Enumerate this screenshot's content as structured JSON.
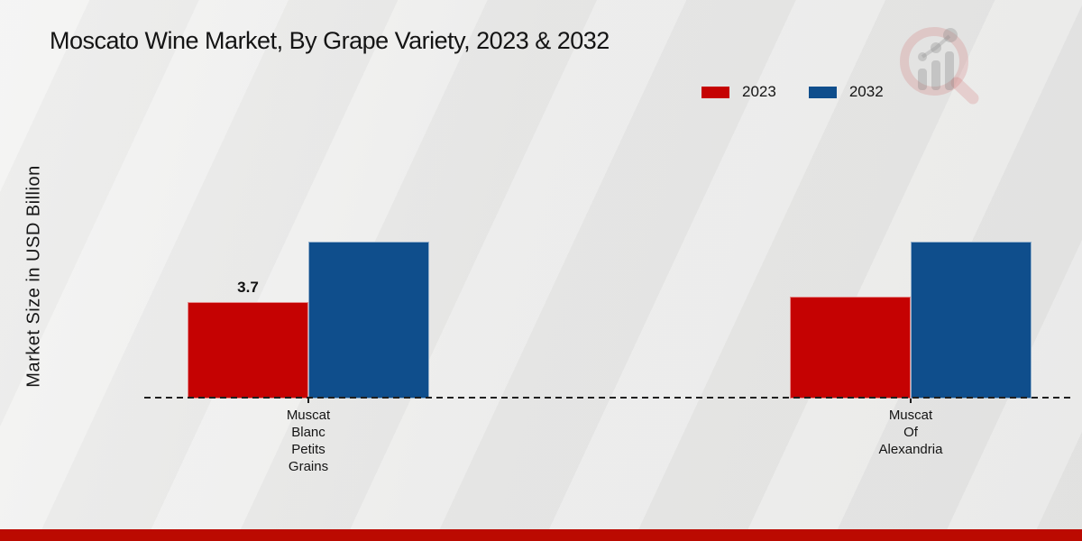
{
  "title": "Moscato Wine Market, By Grape Variety, 2023 & 2032",
  "y_axis_label": "Market Size in USD Billion",
  "legend": [
    {
      "label": "2023",
      "color": "#c50202"
    },
    {
      "label": "2032",
      "color": "#0f4e8c"
    }
  ],
  "chart_data": {
    "type": "bar",
    "title": "Moscato Wine Market, By Grape Variety, 2023 & 2032",
    "categories": [
      "Muscat Blanc Petits Grains",
      "Muscat Of Alexandria"
    ],
    "series": [
      {
        "name": "2023",
        "color": "#c50202",
        "values": [
          3.7,
          3.9
        ],
        "data_labels": [
          "3.7",
          ""
        ]
      },
      {
        "name": "2032",
        "color": "#0f4e8c",
        "values": [
          6.0,
          6.0
        ],
        "data_labels": [
          "",
          ""
        ]
      }
    ],
    "xlabel": "",
    "ylabel": "Market Size in USD Billion",
    "ylim": [
      0,
      7.5
    ],
    "grid": false,
    "legend_position": "top-right",
    "baseline_style": "dashed",
    "y_ticks_visible": false
  },
  "branding": {
    "logo_name": "market-research-future-logo",
    "footer_bar_color": "#bb0a01"
  }
}
